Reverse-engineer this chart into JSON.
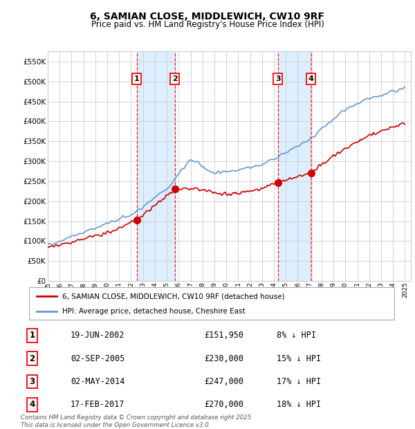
{
  "title": "6, SAMIAN CLOSE, MIDDLEWICH, CW10 9RF",
  "subtitle": "Price paid vs. HM Land Registry's House Price Index (HPI)",
  "ylim": [
    0,
    575000
  ],
  "yticks": [
    0,
    50000,
    100000,
    150000,
    200000,
    250000,
    300000,
    350000,
    400000,
    450000,
    500000,
    550000
  ],
  "ytick_labels": [
    "£0",
    "£50K",
    "£100K",
    "£150K",
    "£200K",
    "£250K",
    "£300K",
    "£350K",
    "£400K",
    "£450K",
    "£500K",
    "£550K"
  ],
  "sale_color": "#cc0000",
  "hpi_color": "#6699cc",
  "grid_color": "#cccccc",
  "shade_color": "#ddeeff",
  "purchases": [
    {
      "date_num": 7.47,
      "price": 151950,
      "label": "1"
    },
    {
      "date_num": 10.67,
      "price": 230000,
      "label": "2"
    },
    {
      "date_num": 19.34,
      "price": 247000,
      "label": "3"
    },
    {
      "date_num": 22.12,
      "price": 270000,
      "label": "4"
    }
  ],
  "purchase_dates_label": [
    "19-JUN-2002",
    "02-SEP-2005",
    "02-MAY-2014",
    "17-FEB-2017"
  ],
  "purchase_prices_label": [
    "£151,950",
    "£230,000",
    "£247,000",
    "£270,000"
  ],
  "purchase_pct_label": [
    "8% ↓ HPI",
    "15% ↓ HPI",
    "17% ↓ HPI",
    "18% ↓ HPI"
  ],
  "legend_sale_label": "6, SAMIAN CLOSE, MIDDLEWICH, CW10 9RF (detached house)",
  "legend_hpi_label": "HPI: Average price, detached house, Cheshire East",
  "footer": "Contains HM Land Registry data © Crown copyright and database right 2025.\nThis data is licensed under the Open Government Licence v3.0."
}
